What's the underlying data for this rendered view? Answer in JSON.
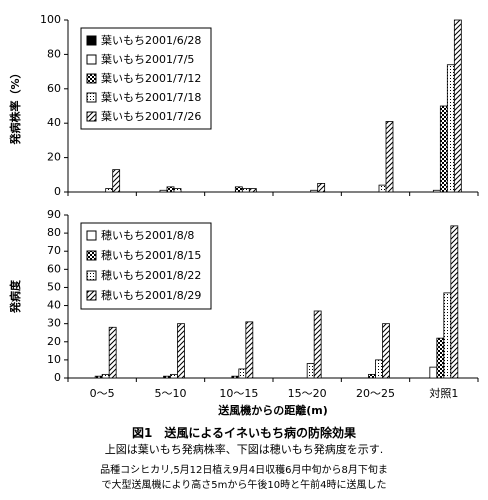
{
  "chart_data": [
    {
      "type": "bar",
      "ylabel": "発病株率（%）",
      "ylim": [
        0,
        100
      ],
      "yticks": [
        0,
        20,
        40,
        60,
        80,
        100
      ],
      "legend": "top-left",
      "series": [
        {
          "name": "葉いもち2001/6/28",
          "color": "#000000",
          "pattern": "solid",
          "values": [
            0,
            0,
            0,
            0,
            0,
            0
          ]
        },
        {
          "name": "葉いもち2001/7/5",
          "color": "#ffffff",
          "pattern": "none",
          "values": [
            0,
            1,
            0,
            0,
            0,
            1
          ]
        },
        {
          "name": "葉いもち2001/7/12",
          "color": "#000000",
          "pattern": "checker",
          "values": [
            0,
            3,
            3,
            0,
            0,
            50
          ]
        },
        {
          "name": "葉いもち2001/7/18",
          "color": "#000000",
          "pattern": "dots",
          "values": [
            2,
            2,
            2,
            1,
            4,
            74
          ]
        },
        {
          "name": "葉いもち2001/7/26",
          "color": "#000000",
          "pattern": "diagonal",
          "values": [
            13,
            0,
            2,
            5,
            41,
            100
          ]
        }
      ]
    },
    {
      "type": "bar",
      "ylabel": "発病度",
      "xlabel": "送風機からの距離(m)",
      "ylim": [
        0,
        90
      ],
      "yticks": [
        0,
        10,
        20,
        30,
        40,
        50,
        60,
        70,
        80,
        90
      ],
      "legend": "top-left",
      "categories": [
        "0〜5",
        "5〜10",
        "10〜15",
        "15〜20",
        "20〜25",
        "対照1"
      ],
      "series": [
        {
          "name": "穂いもち2001/8/8",
          "color": "#ffffff",
          "pattern": "none",
          "values": [
            0,
            0,
            0,
            0,
            0,
            6
          ]
        },
        {
          "name": "穂いもち2001/8/15",
          "color": "#000000",
          "pattern": "checker",
          "values": [
            1,
            1,
            1,
            0,
            2,
            22
          ]
        },
        {
          "name": "穂いもち2001/8/22",
          "color": "#000000",
          "pattern": "dots",
          "values": [
            2,
            2,
            5,
            8,
            10,
            47
          ]
        },
        {
          "name": "穂いもち2001/8/29",
          "color": "#000000",
          "pattern": "diagonal",
          "values": [
            28,
            30,
            31,
            37,
            30,
            84
          ]
        }
      ]
    }
  ],
  "caption": {
    "title": "図1　送風によるイネいもち病の防除効果",
    "line1": "上図は葉いもち発病株率、下図は穂いもち発病度を示す.",
    "line2": "品種コシヒカリ,5月12日植え9月4日収穫6月中旬から8月下旬ま",
    "line3": "で大型送風機により高さ5mから午後10時と午前4時に送風した"
  }
}
